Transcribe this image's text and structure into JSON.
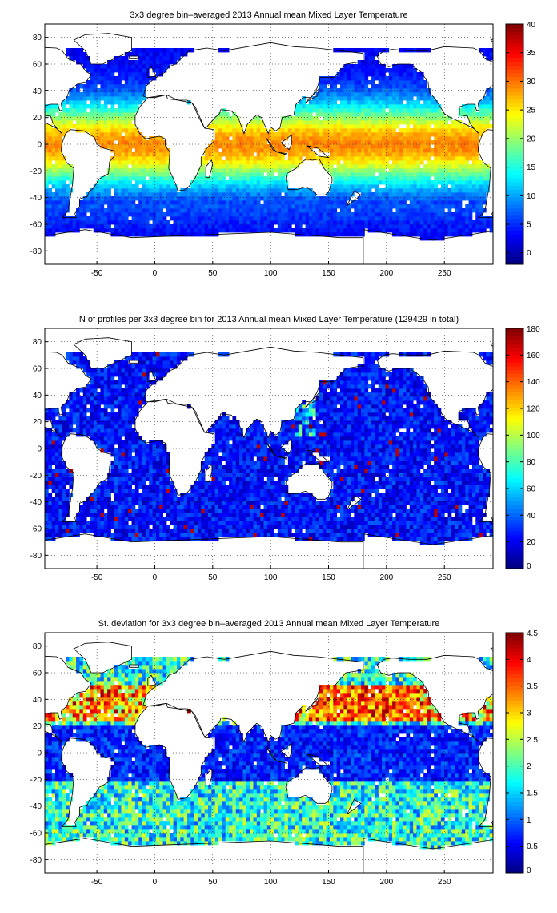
{
  "figure": {
    "background": "#ffffff"
  },
  "chart_data": [
    {
      "type": "heatmap",
      "title": "3x3 degree bin–averaged 2013 Annual mean Mixed Layer Temperature",
      "xlim": [
        -95,
        292
      ],
      "ylim": [
        -90,
        90
      ],
      "xticks": [
        -50,
        0,
        50,
        100,
        150,
        200,
        250
      ],
      "yticks": [
        -80,
        -60,
        -40,
        -20,
        0,
        20,
        40,
        60,
        80
      ],
      "grid": true,
      "bin_size_deg": 3,
      "colorbar": {
        "range": [
          -2,
          40
        ],
        "ticks": [
          0,
          5,
          10,
          15,
          20,
          25,
          30,
          35,
          40
        ],
        "colormap": "jet"
      },
      "field": "mixed layer temperature",
      "value_profile": {
        "equator": 29,
        "midlat": 18,
        "south_ocean": 3,
        "lat_spread": 30
      }
    },
    {
      "type": "heatmap",
      "title": "N of profiles per 3x3 degree bin for 2013 Annual mean Mixed Layer Temperature  (129429 in total)",
      "xlim": [
        -95,
        292
      ],
      "ylim": [
        -90,
        90
      ],
      "xticks": [
        -50,
        0,
        50,
        100,
        150,
        200,
        250
      ],
      "yticks": [
        -80,
        -60,
        -40,
        -20,
        0,
        20,
        40,
        60,
        80
      ],
      "grid": true,
      "bin_size_deg": 3,
      "colorbar": {
        "range": [
          0,
          180
        ],
        "ticks": [
          0,
          20,
          40,
          60,
          80,
          100,
          120,
          140,
          160,
          180
        ],
        "colormap": "jet"
      },
      "field": "number of profiles",
      "value_profile": {
        "typical": 25,
        "hotspot": 170
      }
    },
    {
      "type": "heatmap",
      "title": "St. deviation for 3x3 degree bin–averaged 2013 Annual mean Mixed Layer Temperature",
      "xlim": [
        -95,
        292
      ],
      "ylim": [
        -90,
        90
      ],
      "xticks": [
        -50,
        0,
        50,
        100,
        150,
        200,
        250
      ],
      "yticks": [
        -80,
        -60,
        -40,
        -20,
        0,
        20,
        40,
        60,
        80
      ],
      "grid": true,
      "bin_size_deg": 3,
      "colorbar": {
        "range": [
          0,
          4.5
        ],
        "ticks": [
          0,
          0.5,
          1,
          1.5,
          2,
          2.5,
          3,
          3.5,
          4,
          4.5
        ],
        "colormap": "jet"
      },
      "field": "standard deviation",
      "value_profile": {
        "tropics": 0.3,
        "north_high": 4.4,
        "south": 1.8
      }
    }
  ]
}
